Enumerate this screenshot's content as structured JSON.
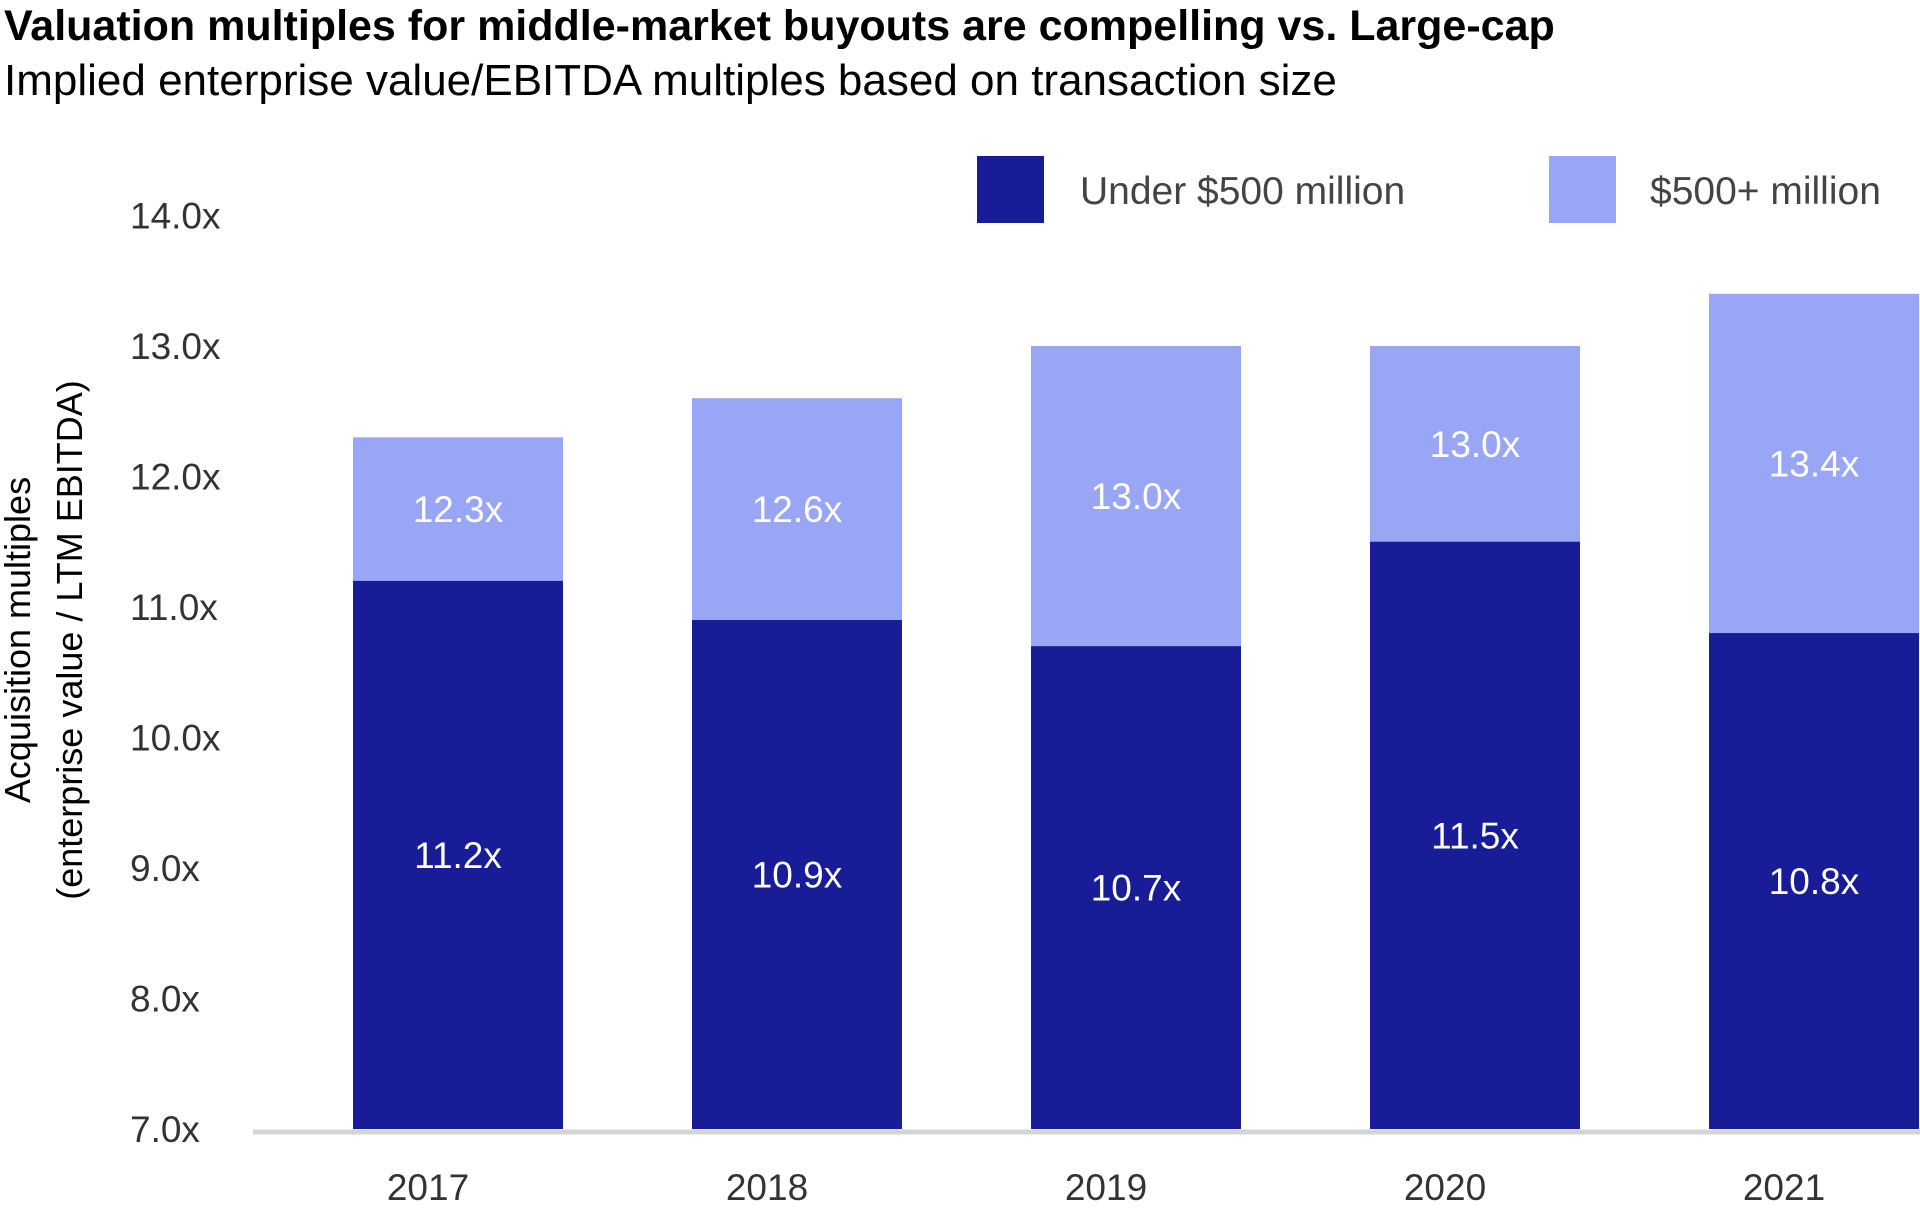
{
  "chart_data": {
    "type": "bar",
    "mode": "overlapping",
    "title": "Valuation multiples for middle-market buyouts are compelling vs. Large-cap",
    "subtitle": "Implied enterprise value/EBITDA multiples based on transaction size",
    "ylabel": [
      "Acquisition multiples",
      "(enterprise value / LTM EBITDA)"
    ],
    "xlabel": "",
    "ylim": [
      7.0,
      14.0
    ],
    "yticks": [
      "7.0x",
      "8.0x",
      "9.0x",
      "10.0x",
      "11.0x",
      "12.0x",
      "13.0x",
      "14.0x"
    ],
    "categories": [
      "2017",
      "2018",
      "2019",
      "2020",
      "2021"
    ],
    "series": [
      {
        "name": "Under $500 million",
        "color": "#181c96",
        "values": [
          11.2,
          10.9,
          10.7,
          11.5,
          10.8
        ],
        "labels": [
          "11.2x",
          "10.9x",
          "10.7x",
          "11.5x",
          "10.8x"
        ]
      },
      {
        "name": "$500+ million",
        "color": "#99a6f5",
        "values": [
          12.3,
          12.6,
          13.0,
          13.0,
          13.4
        ],
        "labels": [
          "12.3x",
          "12.6x",
          "13.0x",
          "13.0x",
          "13.4x"
        ]
      }
    ],
    "grid": false,
    "legend": "top-right"
  }
}
